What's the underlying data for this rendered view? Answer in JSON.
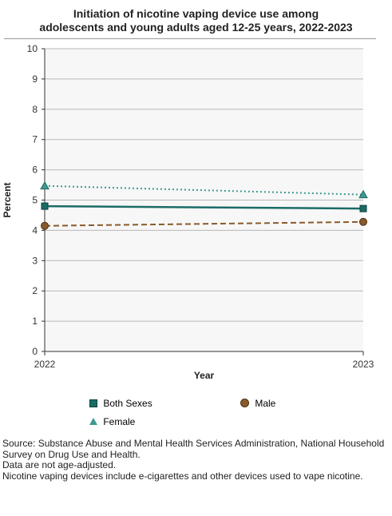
{
  "title_lines": [
    "Initiation of nicotine vaping device use among",
    "adolescents and young adults aged 12-25 years, 2022-2023"
  ],
  "chart_data": {
    "type": "line",
    "title": "Initiation of nicotine vaping device use among adolescents and young adults aged 12-25 years, 2022-2023",
    "xlabel": "Year",
    "ylabel": "Percent",
    "x": [
      "2022",
      "2023"
    ],
    "ylim": [
      0,
      10
    ],
    "yticks": [
      0,
      1,
      2,
      3,
      4,
      5,
      6,
      7,
      8,
      9,
      10
    ],
    "grid": true,
    "legend_position": "bottom",
    "series": [
      {
        "name": "Both Sexes",
        "values": [
          4.8,
          4.72
        ],
        "color": "#1b6b66",
        "marker": "square",
        "line": "solid"
      },
      {
        "name": "Male",
        "values": [
          4.15,
          4.28
        ],
        "color": "#8a5a2b",
        "marker": "circle",
        "line": "dashed"
      },
      {
        "name": "Female",
        "values": [
          5.47,
          5.18
        ],
        "color": "#3c9a8f",
        "marker": "triangle",
        "line": "dotted"
      }
    ]
  },
  "footnotes": [
    "Source: Substance Abuse and Mental Health Services Administration, National Household Survey on Drug Use and Health.",
    "Data are not age-adjusted.",
    "Nicotine vaping devices include e-cigarettes and other devices used to vape nicotine."
  ]
}
